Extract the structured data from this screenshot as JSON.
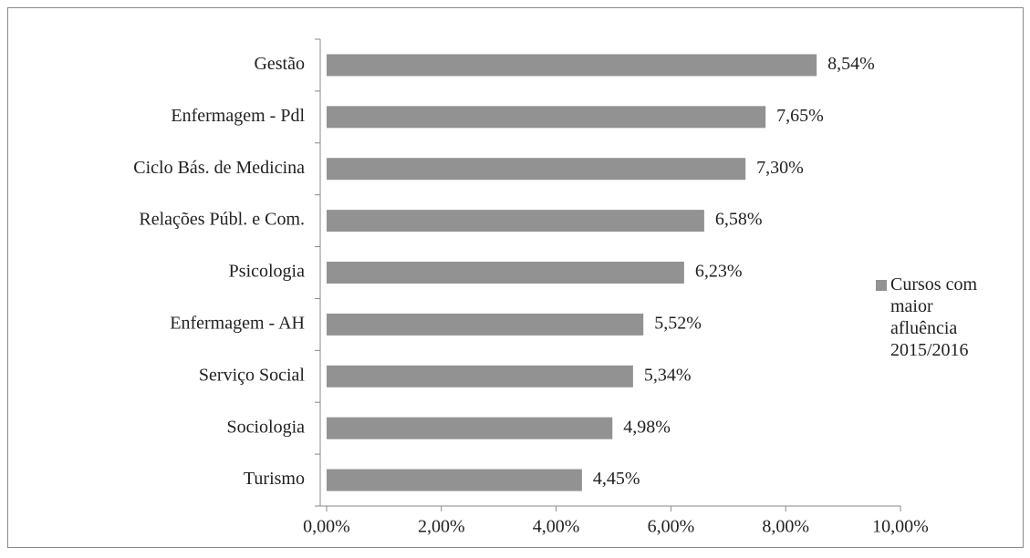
{
  "chart_data": {
    "type": "bar",
    "orientation": "horizontal",
    "categories": [
      "Gestão",
      "Enfermagem - Pdl",
      "Ciclo Bás. de Medicina",
      "Relações Públ. e Com.",
      "Psicologia",
      "Enfermagem - AH",
      "Serviço Social",
      "Sociologia",
      "Turismo"
    ],
    "series": [
      {
        "name": "Cursos com maior afluência 2015/2016",
        "color": "#929292",
        "values": [
          8.54,
          7.65,
          7.3,
          6.58,
          6.23,
          5.52,
          5.34,
          4.98,
          4.45
        ],
        "value_labels": [
          "8,54%",
          "7,65%",
          "7,30%",
          "6,58%",
          "6,23%",
          "5,52%",
          "5,34%",
          "4,98%",
          "4,45%"
        ]
      }
    ],
    "xlim": [
      0,
      10
    ],
    "xticks": [
      {
        "value": 0,
        "label": "0,00%"
      },
      {
        "value": 2,
        "label": "2,00%"
      },
      {
        "value": 4,
        "label": "4,00%"
      },
      {
        "value": 6,
        "label": "6,00%"
      },
      {
        "value": 8,
        "label": "8,00%"
      },
      {
        "value": 10,
        "label": "10,00%"
      }
    ],
    "legend": "right"
  }
}
